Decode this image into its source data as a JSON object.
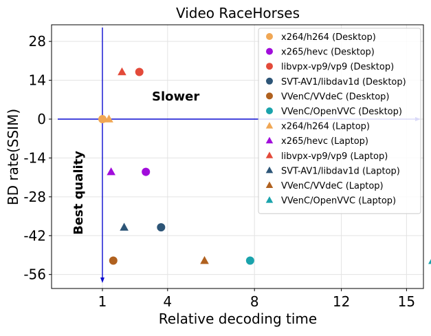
{
  "chart_data": {
    "type": "scatter",
    "title": "Video RaceHorses",
    "xlabel": "Relative decoding time",
    "ylabel": "BD rate(SSIM)",
    "x_ticks": [
      1,
      4,
      8,
      12,
      15
    ],
    "y_ticks": [
      28,
      14,
      0,
      -14,
      -28,
      -42,
      -56
    ],
    "grid": true,
    "legend_position": "top-right",
    "annotations": {
      "slower": "Slower",
      "best_quality": "Best quality"
    },
    "series": [
      {
        "name": "x264/h264 (Desktop)",
        "marker": "circle",
        "color": "#f0a754",
        "points": [
          [
            1.0,
            0
          ]
        ]
      },
      {
        "name": "x265/hevc (Desktop)",
        "marker": "circle",
        "color": "#a10ddb",
        "points": [
          [
            3.0,
            -19
          ]
        ]
      },
      {
        "name": "libvpx-vp9/vp9 (Desktop)",
        "marker": "circle",
        "color": "#e34a3a",
        "points": [
          [
            2.7,
            17
          ]
        ]
      },
      {
        "name": "SVT-AV1/libdav1d (Desktop)",
        "marker": "circle",
        "color": "#2d5577",
        "points": [
          [
            3.7,
            -39
          ]
        ]
      },
      {
        "name": "VVenC/VVdeC (Desktop)",
        "marker": "circle",
        "color": "#b0611f",
        "points": [
          [
            1.5,
            -51
          ]
        ]
      },
      {
        "name": "VVenC/OpenVVC (Desktop)",
        "marker": "circle",
        "color": "#1aa3ac",
        "points": [
          [
            7.8,
            -51
          ]
        ]
      },
      {
        "name": "x264/h264 (Laptop)",
        "marker": "triangle",
        "color": "#f0a754",
        "points": [
          [
            1.3,
            0
          ]
        ]
      },
      {
        "name": "x265/hevc (Laptop)",
        "marker": "triangle",
        "color": "#a10ddb",
        "points": [
          [
            1.4,
            -19
          ]
        ]
      },
      {
        "name": "libvpx-vp9/vp9 (Laptop)",
        "marker": "triangle",
        "color": "#e34a3a",
        "points": [
          [
            1.9,
            17
          ]
        ]
      },
      {
        "name": "SVT-AV1/libdav1d (Laptop)",
        "marker": "triangle",
        "color": "#2d5577",
        "points": [
          [
            2.0,
            -39
          ]
        ]
      },
      {
        "name": "VVenC/VVdeC (Laptop)",
        "marker": "triangle",
        "color": "#b0611f",
        "points": [
          [
            5.7,
            -51
          ]
        ]
      },
      {
        "name": "VVenC/OpenVVC (Laptop)",
        "marker": "triangle",
        "color": "#1aa3ac",
        "points": [
          [
            16.2,
            -51
          ]
        ]
      }
    ],
    "arrow_color": "#0a0ad0"
  }
}
